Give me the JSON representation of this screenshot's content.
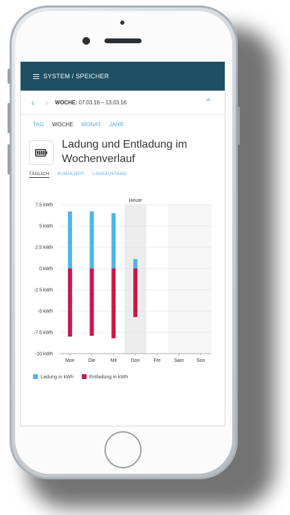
{
  "header": {
    "menu_icon": "hamburger-icon",
    "title": "SYSTEM / SPEICHER"
  },
  "week": {
    "prev_icon": "chevron-left-icon",
    "next_icon": "chevron-right-icon",
    "label": "WOCHE:",
    "range": "07.03.16 – 13.03.16",
    "collapse_icon": "chevron-up-icon"
  },
  "tabs": [
    {
      "label": "TAG"
    },
    {
      "label": "WOCHE"
    },
    {
      "label": "MONAT"
    },
    {
      "label": "JAHR"
    }
  ],
  "active_tab": "WOCHE",
  "section": {
    "icon": "battery-icon",
    "title_line1": "Ladung und Entladung im",
    "title_line2": "Wochenverlauf"
  },
  "subtabs": [
    {
      "label": "TÄGLICH"
    },
    {
      "label": "KUMULIERT"
    },
    {
      "label": "LADEZUSTAND"
    }
  ],
  "active_subtab": "TÄGLICH",
  "chart_data": {
    "type": "bar",
    "categories": [
      "Mon",
      "Die",
      "Mit",
      "Don",
      "Fre",
      "Sam",
      "Son"
    ],
    "series": [
      {
        "name": "Ladung in kWh",
        "color": "#4bb6e6",
        "values": [
          6.7,
          6.7,
          6.5,
          1.1,
          null,
          null,
          null
        ]
      },
      {
        "name": "Entladung in kWh",
        "color": "#c8194b",
        "values": [
          -8.0,
          -7.9,
          -8.2,
          -5.7,
          null,
          null,
          null
        ]
      }
    ],
    "ylim": [
      -10,
      7.5
    ],
    "yticks": [
      7.5,
      5,
      2.5,
      0,
      -2.5,
      -5,
      -7.5,
      -10
    ],
    "ytick_labels": [
      "7.5 kWh",
      "5 kWh",
      "2.5 kWh",
      "0 kWh",
      "-2.5 kWh",
      "-5 kWh",
      "-7.5 kWh",
      "-10 kWh"
    ],
    "annotation": "Heute",
    "today_index": 3,
    "weekend_indices": [
      5,
      6
    ],
    "grid": true,
    "legend": "bottom-left"
  },
  "colors": {
    "appbar": "#1f4f63",
    "accent": "#5aa8e0",
    "charge": "#4bb6e6",
    "discharge": "#c8194b"
  }
}
